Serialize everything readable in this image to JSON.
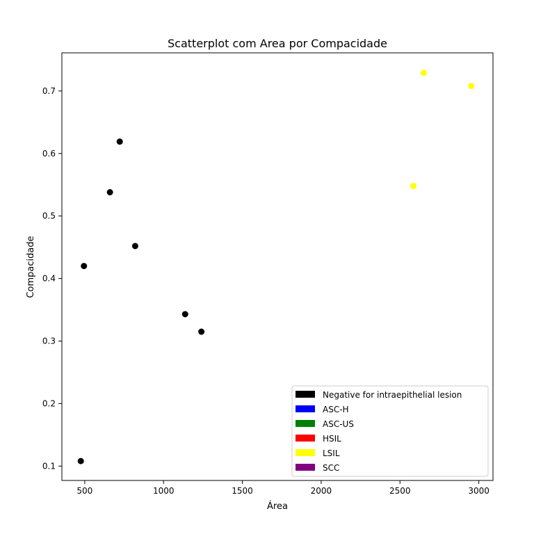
{
  "chart_data": {
    "type": "scatter",
    "title": "Scatterplot com Area por Compacidade",
    "xlabel": "Área",
    "ylabel": "Compacidade",
    "xlim": [
      355,
      3090
    ],
    "ylim": [
      0.077,
      0.761
    ],
    "xticks": [
      500,
      1000,
      1500,
      2000,
      2500,
      3000
    ],
    "yticks": [
      0.1,
      0.2,
      0.3,
      0.4,
      0.5,
      0.6,
      0.7
    ],
    "grid": false,
    "legend_position": "bottom-right",
    "legend": [
      {
        "label": "Negative for intraepithelial lesion",
        "color": "#000000"
      },
      {
        "label": "ASC-H",
        "color": "#0000ff"
      },
      {
        "label": "ASC-US",
        "color": "#008000"
      },
      {
        "label": "HSIL",
        "color": "#ff0000"
      },
      {
        "label": "LSIL",
        "color": "#ffff00"
      },
      {
        "label": "SCC",
        "color": "#800080"
      }
    ],
    "series": [
      {
        "color": "#000000",
        "points": [
          {
            "x": 475,
            "y": 0.108
          },
          {
            "x": 495,
            "y": 0.42
          },
          {
            "x": 660,
            "y": 0.538
          },
          {
            "x": 722,
            "y": 0.619
          },
          {
            "x": 820,
            "y": 0.452
          },
          {
            "x": 1137,
            "y": 0.343
          },
          {
            "x": 1240,
            "y": 0.315
          }
        ]
      },
      {
        "color": "#ffff00",
        "points": [
          {
            "x": 2585,
            "y": 0.548
          },
          {
            "x": 2650,
            "y": 0.729
          },
          {
            "x": 2952,
            "y": 0.708
          }
        ]
      }
    ]
  }
}
